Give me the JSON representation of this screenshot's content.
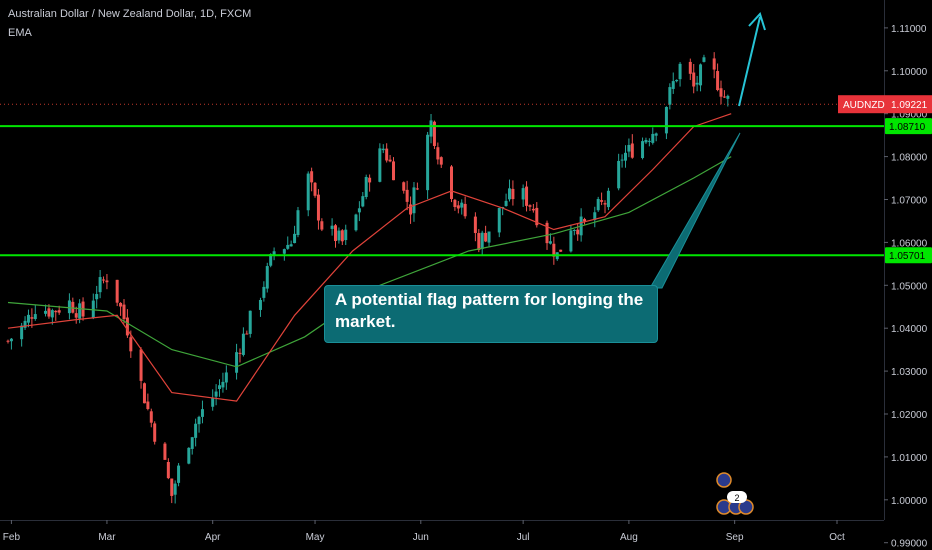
{
  "header": {
    "symbol_title": "Australian Dollar / New Zealand Dollar, 1D, FXCM",
    "indicator": "EMA"
  },
  "callout": {
    "text": "A potential flag pattern for longing the market."
  },
  "price_tag": {
    "symbol": "AUDNZD",
    "value": "1.09221"
  },
  "colors": {
    "background": "#000000",
    "up_candle": "#26a69a",
    "down_candle": "#ef5350",
    "level_line": "#00e600",
    "ema_fast": "#e0433a",
    "ema_slow": "#3fa53a",
    "arrow": "#27c4d6",
    "callout": "#0c6b73"
  },
  "events": {
    "badge": "2"
  },
  "chart_data": {
    "type": "candlestick",
    "title": "Australian Dollar / New Zealand Dollar, 1D, FXCM",
    "ylim": [
      0.9883,
      1.1165
    ],
    "y_ticks": [
      "1.11000",
      "1.10000",
      "1.09000",
      "1.08000",
      "1.07000",
      "1.06000",
      "1.05000",
      "1.04000",
      "1.03000",
      "1.02000",
      "1.01000",
      "1.00000",
      "0.99000"
    ],
    "x_ticks": [
      "Feb",
      "Mar",
      "Apr",
      "May",
      "Jun",
      "Jul",
      "Aug",
      "Sep",
      "Oct"
    ],
    "last_price": 1.09221,
    "levels": [
      {
        "label": "1.08710",
        "value": 1.0871
      },
      {
        "label": "1.05701",
        "value": 1.05701
      }
    ],
    "series": [
      {
        "name": "price",
        "points": [
          {
            "x": "2019-01-31",
            "y": 1.037
          },
          {
            "x": "2019-02-05",
            "y": 1.041
          },
          {
            "x": "2019-02-08",
            "y": 1.045
          },
          {
            "x": "2019-02-13",
            "y": 1.044
          },
          {
            "x": "2019-02-18",
            "y": 1.046
          },
          {
            "x": "2019-02-22",
            "y": 1.043
          },
          {
            "x": "2019-02-26",
            "y": 1.049
          },
          {
            "x": "2019-03-01",
            "y": 1.052
          },
          {
            "x": "2019-03-04",
            "y": 1.047
          },
          {
            "x": "2019-03-07",
            "y": 1.04
          },
          {
            "x": "2019-03-11",
            "y": 1.027
          },
          {
            "x": "2019-03-14",
            "y": 1.018
          },
          {
            "x": "2019-03-18",
            "y": 1.008
          },
          {
            "x": "2019-03-20",
            "y": 1.001
          },
          {
            "x": "2019-03-23",
            "y": 1.01
          },
          {
            "x": "2019-03-27",
            "y": 1.018
          },
          {
            "x": "2019-04-01",
            "y": 1.024
          },
          {
            "x": "2019-04-05",
            "y": 1.029
          },
          {
            "x": "2019-04-10",
            "y": 1.038
          },
          {
            "x": "2019-04-15",
            "y": 1.048
          },
          {
            "x": "2019-04-19",
            "y": 1.058
          },
          {
            "x": "2019-04-24",
            "y": 1.06
          },
          {
            "x": "2019-04-27",
            "y": 1.071
          },
          {
            "x": "2019-04-29",
            "y": 1.075
          },
          {
            "x": "2019-05-03",
            "y": 1.064
          },
          {
            "x": "2019-05-09",
            "y": 1.06
          },
          {
            "x": "2019-05-13",
            "y": 1.066
          },
          {
            "x": "2019-05-17",
            "y": 1.076
          },
          {
            "x": "2019-05-21",
            "y": 1.082
          },
          {
            "x": "2019-05-25",
            "y": 1.075
          },
          {
            "x": "2019-05-29",
            "y": 1.068
          },
          {
            "x": "2019-06-02",
            "y": 1.081
          },
          {
            "x": "2019-06-04",
            "y": 1.088
          },
          {
            "x": "2019-06-07",
            "y": 1.078
          },
          {
            "x": "2019-06-11",
            "y": 1.07
          },
          {
            "x": "2019-06-15",
            "y": 1.065
          },
          {
            "x": "2019-06-18",
            "y": 1.06
          },
          {
            "x": "2019-06-22",
            "y": 1.064
          },
          {
            "x": "2019-06-26",
            "y": 1.07
          },
          {
            "x": "2019-06-30",
            "y": 1.072
          },
          {
            "x": "2019-07-04",
            "y": 1.068
          },
          {
            "x": "2019-07-08",
            "y": 1.061
          },
          {
            "x": "2019-07-11",
            "y": 1.057
          },
          {
            "x": "2019-07-15",
            "y": 1.064
          },
          {
            "x": "2019-07-19",
            "y": 1.064
          },
          {
            "x": "2019-07-23",
            "y": 1.068
          },
          {
            "x": "2019-07-26",
            "y": 1.07
          },
          {
            "x": "2019-07-30",
            "y": 1.08
          },
          {
            "x": "2019-08-04",
            "y": 1.083
          },
          {
            "x": "2019-08-08",
            "y": 1.086
          },
          {
            "x": "2019-08-11",
            "y": 1.09
          },
          {
            "x": "2019-08-14",
            "y": 1.097
          },
          {
            "x": "2019-08-17",
            "y": 1.103
          },
          {
            "x": "2019-08-20",
            "y": 1.096
          },
          {
            "x": "2019-08-23",
            "y": 1.101
          },
          {
            "x": "2019-08-26",
            "y": 1.099
          },
          {
            "x": "2019-08-29",
            "y": 1.094
          },
          {
            "x": "2019-08-31",
            "y": 1.0922
          }
        ]
      },
      {
        "name": "EMA (fast)",
        "points": [
          {
            "x": "2019-01-31",
            "y": 1.04
          },
          {
            "x": "2019-02-20",
            "y": 1.042
          },
          {
            "x": "2019-03-04",
            "y": 1.043
          },
          {
            "x": "2019-03-20",
            "y": 1.025
          },
          {
            "x": "2019-04-08",
            "y": 1.023
          },
          {
            "x": "2019-04-25",
            "y": 1.043
          },
          {
            "x": "2019-05-12",
            "y": 1.058
          },
          {
            "x": "2019-05-28",
            "y": 1.068
          },
          {
            "x": "2019-06-10",
            "y": 1.072
          },
          {
            "x": "2019-06-25",
            "y": 1.068
          },
          {
            "x": "2019-07-10",
            "y": 1.063
          },
          {
            "x": "2019-07-25",
            "y": 1.066
          },
          {
            "x": "2019-08-08",
            "y": 1.077
          },
          {
            "x": "2019-08-20",
            "y": 1.087
          },
          {
            "x": "2019-08-31",
            "y": 1.09
          }
        ]
      },
      {
        "name": "EMA (slow)",
        "points": [
          {
            "x": "2019-01-31",
            "y": 1.046
          },
          {
            "x": "2019-03-01",
            "y": 1.044
          },
          {
            "x": "2019-03-20",
            "y": 1.035
          },
          {
            "x": "2019-04-08",
            "y": 1.031
          },
          {
            "x": "2019-04-28",
            "y": 1.038
          },
          {
            "x": "2019-05-20",
            "y": 1.05
          },
          {
            "x": "2019-06-15",
            "y": 1.058
          },
          {
            "x": "2019-07-10",
            "y": 1.062
          },
          {
            "x": "2019-08-01",
            "y": 1.067
          },
          {
            "x": "2019-08-20",
            "y": 1.075
          },
          {
            "x": "2019-08-31",
            "y": 1.08
          }
        ]
      }
    ]
  }
}
